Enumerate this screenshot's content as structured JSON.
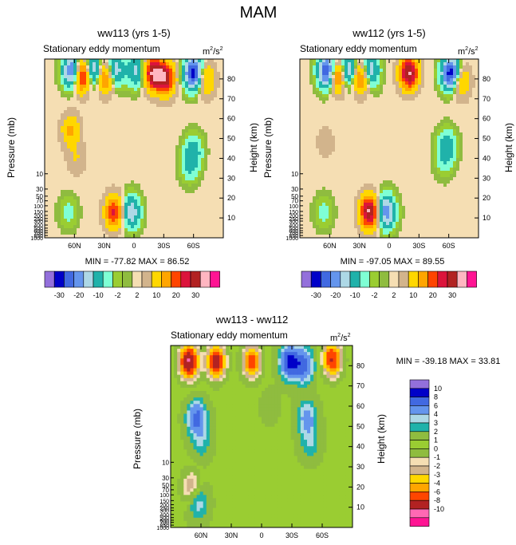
{
  "main_title": "MAM",
  "chart_data": [
    {
      "type": "heatmap",
      "title": "ww113 (yrs 1-5)",
      "subtitle": "Stationary eddy momentum",
      "units_base": "m",
      "units_exp1": "2",
      "units_mid": "/s",
      "units_exp2": "2",
      "ylabel_left": "Pressure (mb)",
      "ylabel_right": "Height (km)",
      "x_ticks": [
        "60N",
        "30N",
        "0",
        "30S",
        "60S"
      ],
      "x_tick_values": [
        60,
        30,
        0,
        -30,
        -60
      ],
      "xlim": [
        90,
        -90
      ],
      "pressure_ticks": [
        "10",
        "30",
        "50",
        "70",
        "100",
        "150",
        "200",
        "250",
        "300",
        "400",
        "500",
        "600",
        "700",
        "850",
        "1000"
      ],
      "pressure_tick_values": [
        10,
        30,
        50,
        70,
        100,
        150,
        200,
        250,
        300,
        400,
        500,
        600,
        700,
        850,
        1000
      ],
      "height_ticks": [
        "10",
        "20",
        "30",
        "40",
        "50",
        "60",
        "70",
        "80"
      ],
      "height_tick_values": [
        10,
        20,
        30,
        40,
        50,
        60,
        70,
        80
      ],
      "ylim_height_km": [
        0,
        90
      ],
      "min": "-77.82",
      "max": "86.52",
      "stats_text": "MIN = -77.82  MAX =  86.52",
      "features": [
        {
          "lat": 62,
          "z": 84,
          "v": -25
        },
        {
          "lat": 42,
          "z": 84,
          "v": -20
        },
        {
          "lat": 20,
          "z": 84,
          "v": -18
        },
        {
          "lat": -2,
          "z": 84,
          "v": -12
        },
        {
          "lat": 28,
          "z": 81,
          "v": 20
        },
        {
          "lat": 52,
          "z": 82,
          "v": 30
        },
        {
          "lat": -20,
          "z": 83,
          "v": 30
        },
        {
          "lat": -32,
          "z": 80,
          "v": 25
        },
        {
          "lat": -60,
          "z": 83,
          "v": -30
        },
        {
          "lat": -72,
          "z": 80,
          "v": 12
        },
        {
          "lat": 64,
          "z": 54,
          "v": 10
        },
        {
          "lat": 58,
          "z": 40,
          "v": 4
        },
        {
          "lat": -60,
          "z": 44,
          "v": -8
        },
        {
          "lat": -56,
          "z": 36,
          "v": -6
        },
        {
          "lat": 66,
          "z": 13,
          "v": -4
        },
        {
          "lat": 20,
          "z": 13,
          "v": 20
        },
        {
          "lat": 3,
          "z": 13,
          "v": -15
        },
        {
          "lat": 40,
          "z": 60,
          "v": 0.5
        }
      ]
    },
    {
      "type": "heatmap",
      "title": "ww112 (yrs 1-5)",
      "subtitle": "Stationary eddy momentum",
      "units_base": "m",
      "units_exp1": "2",
      "units_mid": "/s",
      "units_exp2": "2",
      "ylabel_left": "Pressure (mb)",
      "ylabel_right": "Height (km)",
      "x_ticks": [
        "60N",
        "30N",
        "0",
        "30S",
        "60S"
      ],
      "x_tick_values": [
        60,
        30,
        0,
        -30,
        -60
      ],
      "xlim": [
        90,
        -90
      ],
      "pressure_ticks": [
        "10",
        "30",
        "50",
        "70",
        "100",
        "150",
        "200",
        "250",
        "300",
        "400",
        "500",
        "600",
        "700",
        "850",
        "1000"
      ],
      "pressure_tick_values": [
        10,
        30,
        50,
        70,
        100,
        150,
        200,
        250,
        300,
        400,
        500,
        600,
        700,
        850,
        1000
      ],
      "height_ticks": [
        "10",
        "20",
        "30",
        "40",
        "50",
        "60",
        "70",
        "80"
      ],
      "height_tick_values": [
        10,
        20,
        30,
        40,
        50,
        60,
        70,
        80
      ],
      "ylim_height_km": [
        0,
        90
      ],
      "min": "-97.05",
      "max": "89.55",
      "stats_text": "MIN = -97.05  MAX =  89.55",
      "features": [
        {
          "lat": 62,
          "z": 84,
          "v": -30
        },
        {
          "lat": 42,
          "z": 84,
          "v": -20
        },
        {
          "lat": 20,
          "z": 84,
          "v": -18
        },
        {
          "lat": 28,
          "z": 81,
          "v": 20
        },
        {
          "lat": 52,
          "z": 82,
          "v": 25
        },
        {
          "lat": -20,
          "z": 83,
          "v": 30
        },
        {
          "lat": -62,
          "z": 83,
          "v": -30
        },
        {
          "lat": -72,
          "z": 79,
          "v": 12
        },
        {
          "lat": 64,
          "z": 48,
          "v": 3
        },
        {
          "lat": -58,
          "z": 46,
          "v": -10
        },
        {
          "lat": -55,
          "z": 38,
          "v": -3
        },
        {
          "lat": 66,
          "z": 13,
          "v": -4
        },
        {
          "lat": 20,
          "z": 13,
          "v": 30
        },
        {
          "lat": 3,
          "z": 13,
          "v": -20
        },
        {
          "lat": 40,
          "z": 60,
          "v": 0.5
        }
      ]
    },
    {
      "type": "heatmap",
      "title": "ww113 - ww112",
      "subtitle": "Stationary eddy momentum",
      "units_base": "m",
      "units_exp1": "2",
      "units_mid": "/s",
      "units_exp2": "2",
      "ylabel_left": "Pressure (mb)",
      "ylabel_right": "Height (km)",
      "x_ticks": [
        "60N",
        "30N",
        "0",
        "30S",
        "60S"
      ],
      "x_tick_values": [
        60,
        30,
        0,
        -30,
        -60
      ],
      "xlim": [
        90,
        -90
      ],
      "pressure_ticks": [
        "10",
        "30",
        "50",
        "70",
        "100",
        "150",
        "200",
        "250",
        "300",
        "400",
        "500",
        "600",
        "700",
        "850",
        "1000"
      ],
      "pressure_tick_values": [
        10,
        30,
        50,
        70,
        100,
        150,
        200,
        250,
        300,
        400,
        500,
        600,
        700,
        850,
        1000
      ],
      "height_ticks": [
        "10",
        "20",
        "30",
        "40",
        "50",
        "60",
        "70",
        "80"
      ],
      "height_tick_values": [
        10,
        20,
        30,
        40,
        50,
        60,
        70,
        80
      ],
      "ylim_height_km": [
        0,
        90
      ],
      "min": "-39.18",
      "max": "33.81",
      "stats_text": "MIN = -39.18  MAX = 33.81",
      "features": [
        {
          "lat": 72,
          "z": 82,
          "v": -9
        },
        {
          "lat": 45,
          "z": 82,
          "v": -8
        },
        {
          "lat": 10,
          "z": 82,
          "v": -6
        },
        {
          "lat": -28,
          "z": 82,
          "v": 8
        },
        {
          "lat": -42,
          "z": 80,
          "v": 6
        },
        {
          "lat": -70,
          "z": 83,
          "v": -7
        },
        {
          "lat": 64,
          "z": 54,
          "v": 6
        },
        {
          "lat": 60,
          "z": 42,
          "v": 2
        },
        {
          "lat": -45,
          "z": 54,
          "v": 4
        },
        {
          "lat": -48,
          "z": 42,
          "v": 2
        },
        {
          "lat": 70,
          "z": 20,
          "v": -3
        },
        {
          "lat": 63,
          "z": 12,
          "v": 3
        },
        {
          "lat": -8,
          "z": 60,
          "v": 0.5
        }
      ]
    }
  ],
  "colorbar_top": {
    "colors": [
      "#9370db",
      "#0000c8",
      "#4169e1",
      "#6495ed",
      "#add8e6",
      "#20b2aa",
      "#7fffd4",
      "#9acd32",
      "#8fbc3f",
      "#f5deb3",
      "#d2b48c",
      "#ffd700",
      "#ffa500",
      "#ff4500",
      "#dc143c",
      "#b22222",
      "#ffb6c1",
      "#ff1493"
    ],
    "labels": [
      "-30",
      "-20",
      "-10",
      "-2",
      "2",
      "10",
      "20",
      "30"
    ]
  },
  "colorbar_diff": {
    "colors": [
      "#9370db",
      "#0000c8",
      "#4169e1",
      "#6495ed",
      "#add8e6",
      "#20b2aa",
      "#8fbc3f",
      "#9acd32",
      "#8fbc3f",
      "#f5deb3",
      "#d2b48c",
      "#ffd700",
      "#ffa500",
      "#ff4500",
      "#b22222",
      "#ff69b4",
      "#ff1493"
    ],
    "labels": [
      "10",
      "8",
      "6",
      "4",
      "3",
      "2",
      "1",
      "0",
      "-1",
      "-2",
      "-3",
      "-4",
      "-6",
      "-8",
      "-10"
    ]
  },
  "levels_top": [
    -30,
    -25,
    -20,
    -15,
    -10,
    -5,
    -2,
    -0.5,
    0.5,
    2,
    5,
    10,
    15,
    20,
    25,
    30,
    40
  ],
  "levels_diff": [
    -10,
    -8,
    -6,
    -4,
    -3,
    -2,
    -1,
    -0.5,
    0.5,
    1,
    2,
    3,
    4,
    6,
    8,
    10
  ]
}
